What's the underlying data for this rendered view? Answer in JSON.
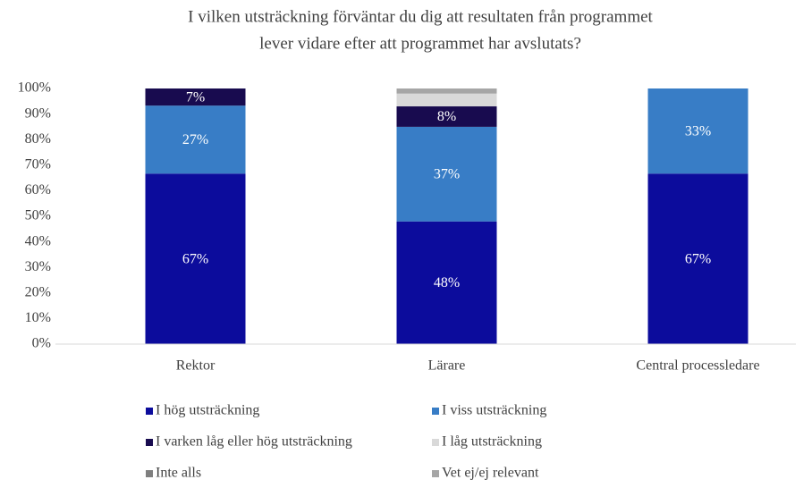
{
  "chart_data": {
    "type": "stacked_bar",
    "title": [
      "I vilken utsträckning förväntar du dig att resultaten från programmet",
      "lever vidare efter att programmet har avslutats?"
    ],
    "categories": [
      "Rektor",
      "Lärare",
      "Central processledare"
    ],
    "series": [
      {
        "name": "I hög utsträckning",
        "color": "#0c0c9c",
        "values": [
          66.7,
          48,
          66.7
        ],
        "value_labels": [
          "67%",
          "48%",
          "67%"
        ]
      },
      {
        "name": "I viss utsträckning",
        "color": "#387dc6",
        "values": [
          26.6,
          37,
          33.3
        ],
        "value_labels": [
          "27%",
          "37%",
          "33%"
        ]
      },
      {
        "name": "I varken låg eller hög utsträckning",
        "color": "#180b4f",
        "values": [
          6.7,
          8,
          0
        ],
        "value_labels": [
          "7%",
          "8%",
          null
        ]
      },
      {
        "name": "I låg utsträckning",
        "color": "#d9d9d9",
        "values": [
          0,
          5,
          0
        ],
        "value_labels": [
          null,
          null,
          null
        ]
      },
      {
        "name": "Inte alls",
        "color": "#7f7f7f",
        "values": [
          0,
          0,
          0
        ],
        "value_labels": [
          null,
          null,
          null
        ]
      },
      {
        "name": "Vet ej/ej relevant",
        "color": "#a6a6a6",
        "values": [
          0,
          2,
          0
        ],
        "value_labels": [
          null,
          null,
          null
        ]
      }
    ],
    "ylim": [
      0,
      100
    ],
    "yticks": [
      {
        "value": 0,
        "label": "0%"
      },
      {
        "value": 10,
        "label": "10%"
      },
      {
        "value": 20,
        "label": "20%"
      },
      {
        "value": 30,
        "label": "30%"
      },
      {
        "value": 40,
        "label": "40%"
      },
      {
        "value": 50,
        "label": "50%"
      },
      {
        "value": 60,
        "label": "60%"
      },
      {
        "value": 70,
        "label": "70%"
      },
      {
        "value": 80,
        "label": "80%"
      },
      {
        "value": 90,
        "label": "90%"
      },
      {
        "value": 100,
        "label": "100%"
      }
    ],
    "grid": false
  }
}
